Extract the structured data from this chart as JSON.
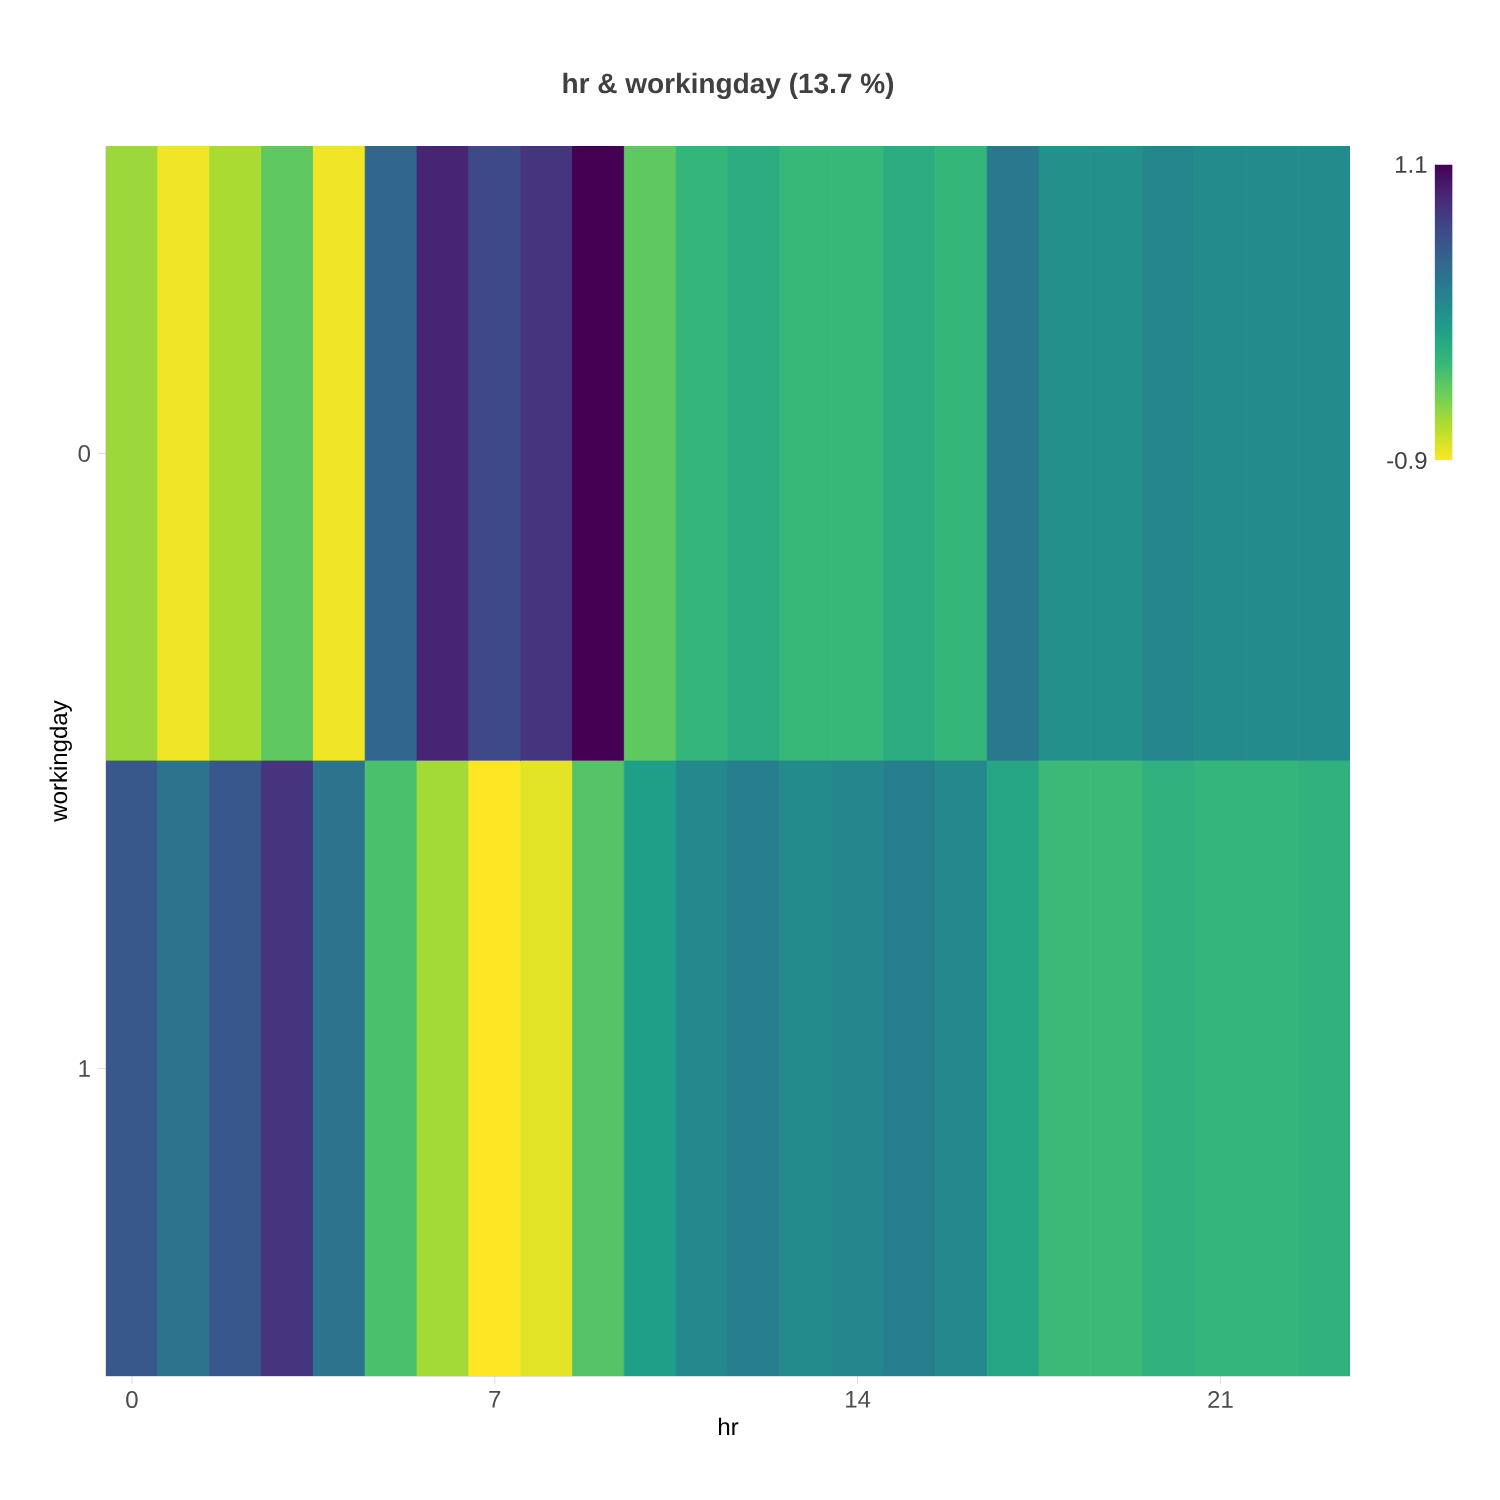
{
  "chart_data": {
    "type": "heatmap",
    "title": "hr & workingday (13.7 %)",
    "xlabel": "hr",
    "ylabel": "workingday",
    "categories": [
      "0",
      null,
      null,
      null,
      null,
      null,
      null,
      "7",
      null,
      null,
      null,
      null,
      null,
      null,
      "14",
      null,
      null,
      null,
      null,
      null,
      null,
      "21",
      null,
      null
    ],
    "y_categories": [
      "0",
      "1"
    ],
    "cells": [
      [
        -0.6,
        -0.86,
        -0.64,
        -0.4,
        -0.86,
        0.44,
        0.9,
        0.66,
        0.8,
        1.1,
        -0.4,
        -0.22,
        -0.14,
        -0.24,
        -0.24,
        -0.14,
        -0.22,
        0.3,
        0.1,
        0.1,
        0.18,
        0.14,
        0.14,
        0.14
      ],
      [
        0.56,
        0.34,
        0.56,
        0.8,
        0.34,
        -0.32,
        -0.62,
        -0.9,
        -0.82,
        -0.36,
        -0.02,
        0.16,
        0.24,
        0.14,
        0.18,
        0.24,
        0.16,
        -0.08,
        -0.26,
        -0.26,
        -0.18,
        -0.22,
        -0.22,
        -0.18
      ]
    ],
    "clim": [
      -0.9,
      1.1
    ],
    "cticks": [
      -0.9,
      1.1
    ]
  }
}
